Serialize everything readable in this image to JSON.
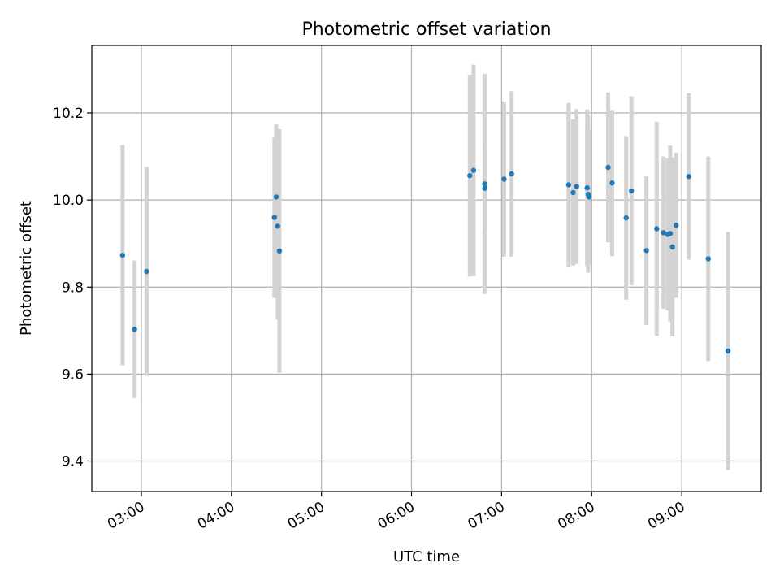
{
  "chart_data": {
    "type": "scatter",
    "title": "Photometric offset variation",
    "xlabel": "UTC time",
    "ylabel": "Photometric offset",
    "x_ticks": [
      "03:00",
      "04:00",
      "05:00",
      "06:00",
      "07:00",
      "08:00",
      "09:00"
    ],
    "y_ticks": [
      "9.4",
      "9.6",
      "9.8",
      "10.0",
      "10.2"
    ],
    "xlim": [
      "02:27",
      "09:53"
    ],
    "ylim": [
      9.33,
      10.355
    ],
    "grid": true,
    "colors": {
      "marker": "#1f77b4",
      "errorbar": "#d3d3d3"
    },
    "points": [
      {
        "x": "02:47:30",
        "y": 9.873,
        "yerr": 0.253
      },
      {
        "x": "02:55:30",
        "y": 9.703,
        "yerr": 0.158
      },
      {
        "x": "03:03:30",
        "y": 9.836,
        "yerr": 0.24
      },
      {
        "x": "04:28:40",
        "y": 9.96,
        "yerr": 0.185
      },
      {
        "x": "04:29:50",
        "y": 10.007,
        "yerr": 0.168
      },
      {
        "x": "04:30:50",
        "y": 9.94,
        "yerr": 0.215
      },
      {
        "x": "04:32:00",
        "y": 9.883,
        "yerr": 0.28
      },
      {
        "x": "06:38:50",
        "y": 10.056,
        "yerr": 0.232
      },
      {
        "x": "06:41:20",
        "y": 10.068,
        "yerr": 0.243
      },
      {
        "x": "06:48:40",
        "y": 10.037,
        "yerr": 0.253
      },
      {
        "x": "06:48:50",
        "y": 10.027,
        "yerr": 0.1
      },
      {
        "x": "07:01:40",
        "y": 10.048,
        "yerr": 0.178
      },
      {
        "x": "07:06:40",
        "y": 10.06,
        "yerr": 0.19
      },
      {
        "x": "07:44:40",
        "y": 10.035,
        "yerr": 0.188
      },
      {
        "x": "07:47:40",
        "y": 10.017,
        "yerr": 0.168
      },
      {
        "x": "07:50:00",
        "y": 10.031,
        "yerr": 0.178
      },
      {
        "x": "07:57:00",
        "y": 10.028,
        "yerr": 0.18
      },
      {
        "x": "07:57:40",
        "y": 10.013,
        "yerr": 0.18
      },
      {
        "x": "07:58:20",
        "y": 10.007,
        "yerr": 0.155
      },
      {
        "x": "08:11:00",
        "y": 10.075,
        "yerr": 0.172
      },
      {
        "x": "08:13:40",
        "y": 10.039,
        "yerr": 0.168
      },
      {
        "x": "08:23:00",
        "y": 9.959,
        "yerr": 0.188
      },
      {
        "x": "08:26:30",
        "y": 10.021,
        "yerr": 0.217
      },
      {
        "x": "08:36:30",
        "y": 9.884,
        "yerr": 0.171
      },
      {
        "x": "08:43:20",
        "y": 9.934,
        "yerr": 0.246
      },
      {
        "x": "08:47:50",
        "y": 9.925,
        "yerr": 0.175
      },
      {
        "x": "08:50:40",
        "y": 9.921,
        "yerr": 0.175
      },
      {
        "x": "08:52:20",
        "y": 9.923,
        "yerr": 0.202
      },
      {
        "x": "08:53:50",
        "y": 9.892,
        "yerr": 0.205
      },
      {
        "x": "08:56:20",
        "y": 9.942,
        "yerr": 0.167
      },
      {
        "x": "09:04:40",
        "y": 10.054,
        "yerr": 0.191
      },
      {
        "x": "09:17:40",
        "y": 9.865,
        "yerr": 0.235
      },
      {
        "x": "09:30:50",
        "y": 9.653,
        "yerr": 0.274
      }
    ]
  }
}
